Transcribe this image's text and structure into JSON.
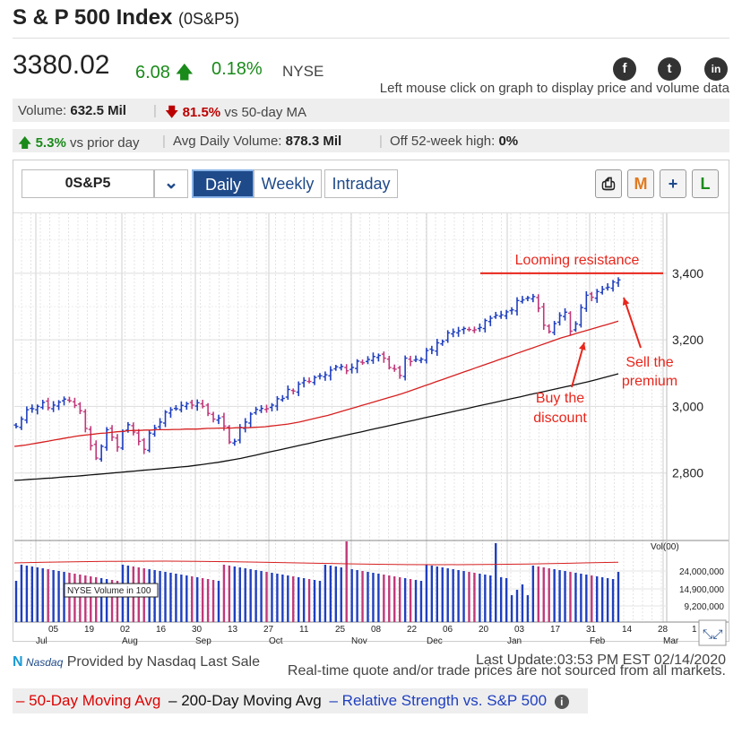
{
  "header": {
    "title": "S & P 500 Index",
    "symbol": "(0S&P5)",
    "price": "3380.02",
    "change": "6.08",
    "change_pct": "0.18%",
    "exchange": "NYSE",
    "hint": "Left mouse click on graph to display price and volume data"
  },
  "social": [
    {
      "icon": "facebook-icon",
      "glyph": "f"
    },
    {
      "icon": "twitter-icon",
      "glyph": "t"
    },
    {
      "icon": "linkedin-icon",
      "glyph": "in"
    }
  ],
  "stats": {
    "volume_label": "Volume:",
    "volume_value": "632.5 Mil",
    "vs_ma_value": "81.5%",
    "vs_ma_label": "vs 50-day MA",
    "prior_value": "5.3%",
    "prior_label": "vs prior day",
    "avg_vol_label": "Avg Daily Volume:",
    "avg_vol_value": "878.3 Mil",
    "off_high_label": "Off 52-week high:",
    "off_high_value": "0%"
  },
  "toolbar": {
    "symbol_value": "0S&P5",
    "tabs": [
      "Daily",
      "Weekly",
      "Intraday"
    ],
    "active_tab": "Daily",
    "tools": [
      {
        "icon": "print-icon",
        "glyph": "⎙"
      },
      {
        "icon": "markup-icon",
        "glyph": "M"
      },
      {
        "icon": "add-icon",
        "glyph": "+"
      },
      {
        "icon": "line-icon",
        "glyph": "L"
      }
    ]
  },
  "chart_data": {
    "type": "candlestick",
    "y_axis_ticks": [
      "3,400",
      "3,200",
      "3,000",
      "2,800"
    ],
    "ylim": [
      2600,
      3580
    ],
    "x_tick_labels": [
      "05",
      "19",
      "02",
      "16",
      "30",
      "13",
      "27",
      "11",
      "25",
      "08",
      "22",
      "06",
      "20",
      "03",
      "17",
      "31",
      "14",
      "28",
      "1"
    ],
    "month_labels": [
      "Jul",
      "Aug",
      "Sep",
      "Oct",
      "Nov",
      "Dec",
      "Jan",
      "Feb",
      "Mar"
    ],
    "price_series_close": [
      2940,
      2962,
      2990,
      2993,
      3000,
      3012,
      2996,
      3004,
      3013,
      3022,
      3017,
      3003,
      2987,
      2934,
      2882,
      2845,
      2880,
      2930,
      2908,
      2878,
      2925,
      2945,
      2923,
      2895,
      2871,
      2920,
      2935,
      2953,
      2983,
      2990,
      2993,
      3003,
      3008,
      3004,
      3011,
      3000,
      2979,
      2962,
      2965,
      2941,
      2893,
      2895,
      2937,
      2953,
      2977,
      2991,
      2994,
      2993,
      3004,
      3023,
      3024,
      3051,
      3046,
      3067,
      3078,
      3075,
      3087,
      3092,
      3095,
      3109,
      3119,
      3120,
      3107,
      3117,
      3136,
      3131,
      3141,
      3150,
      3153,
      3145,
      3117,
      3112,
      3093,
      3145,
      3135,
      3141,
      3142,
      3168,
      3169,
      3191,
      3195,
      3221,
      3224,
      3227,
      3234,
      3231,
      3230,
      3237,
      3258,
      3265,
      3274,
      3275,
      3284,
      3290,
      3318,
      3320,
      3326,
      3330,
      3295,
      3244,
      3225,
      3249,
      3273,
      3283,
      3226,
      3248,
      3297,
      3334,
      3328,
      3345,
      3352,
      3358,
      3374,
      3380
    ],
    "ma50_series": [
      2880,
      2882,
      2884,
      2887,
      2890,
      2893,
      2896,
      2899,
      2902,
      2905,
      2908,
      2911,
      2913,
      2915,
      2917,
      2919,
      2920,
      2922,
      2924,
      2925,
      2927,
      2928,
      2928,
      2929,
      2929,
      2930,
      2930,
      2930,
      2931,
      2931,
      2932,
      2932,
      2932,
      2933,
      2934,
      2934,
      2935,
      2935,
      2935,
      2936,
      2936,
      2936,
      2937,
      2938,
      2939,
      2941,
      2943,
      2945,
      2947,
      2950,
      2953,
      2957,
      2961,
      2965,
      2969,
      2973,
      2978,
      2983,
      2988,
      2993,
      2998,
      3003,
      3008,
      3013,
      3018,
      3023,
      3028,
      3033,
      3038,
      3044,
      3050,
      3056,
      3062,
      3068,
      3074,
      3080,
      3086,
      3092,
      3098,
      3104,
      3110,
      3116,
      3122,
      3128,
      3134,
      3140,
      3146,
      3152,
      3158,
      3164,
      3170,
      3176,
      3182,
      3188,
      3194,
      3200,
      3206,
      3211,
      3216,
      3221,
      3226,
      3231,
      3236,
      3241,
      3246,
      3251,
      3256
    ],
    "ma200_series": [
      2778,
      2779,
      2781,
      2782,
      2784,
      2785,
      2787,
      2789,
      2790,
      2792,
      2794,
      2796,
      2798,
      2800,
      2802,
      2804,
      2806,
      2808,
      2810,
      2812,
      2814,
      2816,
      2818,
      2820,
      2823,
      2826,
      2829,
      2832,
      2836,
      2840,
      2844,
      2849,
      2854,
      2859,
      2864,
      2869,
      2874,
      2879,
      2884,
      2889,
      2894,
      2899,
      2904,
      2909,
      2914,
      2919,
      2924,
      2929,
      2934,
      2939,
      2944,
      2949,
      2954,
      2959,
      2964,
      2969,
      2974,
      2979,
      2984,
      2989,
      2994,
      2999,
      3004,
      3009,
      3014,
      3019,
      3024,
      3029,
      3034,
      3039,
      3044,
      3049,
      3054,
      3059,
      3064,
      3069,
      3074,
      3080,
      3086,
      3092,
      3098
    ],
    "volume_axis_label": "Vol(00)",
    "volume_ticks": [
      "24,000,000",
      "14,900,000",
      "9,200,000"
    ],
    "volume_note": "NYSE Volume in 100",
    "annotations": [
      {
        "text": "Looming resistance",
        "color": "#e8261c"
      },
      {
        "text": "Sell the premium",
        "lines": [
          "Sell the",
          "premium"
        ],
        "color": "#e8261c"
      },
      {
        "text": "Buy the discount",
        "lines": [
          "Buy the",
          "discount"
        ],
        "color": "#e8261c"
      }
    ],
    "resistance_level": 3400
  },
  "footer": {
    "provider": "Provided by Nasdaq Last Sale",
    "nasdaq_logo": "Nasdaq",
    "last_update": "Last Update:03:53 PM EST 02/14/2020",
    "disclaimer": "Real-time quote and/or trade prices are not sourced from all markets."
  },
  "legend": {
    "ma50": "– 50-Day Moving Avg",
    "ma200": "– 200-Day Moving Avg",
    "rs": "– Relative Strength vs. S&P 500"
  },
  "colors": {
    "up_bar": "#1f3fbf",
    "down_bar": "#c0397a",
    "ma50": "#d62020",
    "ma200": "#111111",
    "annotation": "#e8261c"
  }
}
